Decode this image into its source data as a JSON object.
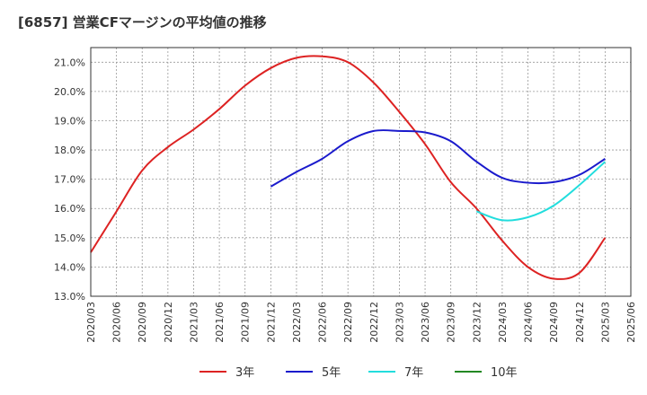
{
  "chart_data": {
    "type": "line",
    "title": "[6857]  営業CFマージンの平均値の推移",
    "xlabel": "",
    "ylabel": "",
    "y_unit": "%",
    "ylim": [
      13.0,
      21.5
    ],
    "yticks": [
      13.0,
      14.0,
      15.0,
      16.0,
      17.0,
      18.0,
      19.0,
      20.0,
      21.0
    ],
    "ytick_labels": [
      "13.0%",
      "14.0%",
      "15.0%",
      "16.0%",
      "17.0%",
      "18.0%",
      "19.0%",
      "20.0%",
      "21.0%"
    ],
    "xticks": [
      "2020/03",
      "2020/06",
      "2020/09",
      "2020/12",
      "2021/03",
      "2021/06",
      "2021/09",
      "2021/12",
      "2022/03",
      "2022/06",
      "2022/09",
      "2022/12",
      "2023/03",
      "2023/06",
      "2023/09",
      "2023/12",
      "2024/03",
      "2024/06",
      "2024/09",
      "2024/12",
      "2025/03",
      "2025/06"
    ],
    "grid": true,
    "legend_position": "bottom",
    "series": [
      {
        "name": "3年",
        "color": "#dd2222",
        "x": [
          "2020/03",
          "2020/06",
          "2020/09",
          "2020/12",
          "2021/03",
          "2021/06",
          "2021/09",
          "2021/12",
          "2022/03",
          "2022/06",
          "2022/09",
          "2022/12",
          "2023/03",
          "2023/06",
          "2023/09",
          "2023/12",
          "2024/03",
          "2024/06",
          "2024/09",
          "2024/12",
          "2025/03"
        ],
        "values": [
          14.5,
          15.9,
          17.3,
          18.1,
          18.7,
          19.4,
          20.2,
          20.8,
          21.15,
          21.2,
          21.0,
          20.3,
          19.3,
          18.2,
          16.9,
          16.0,
          14.9,
          14.0,
          13.6,
          13.8,
          15.0
        ]
      },
      {
        "name": "5年",
        "color": "#1a1acc",
        "x": [
          "2021/12",
          "2022/03",
          "2022/06",
          "2022/09",
          "2022/12",
          "2023/03",
          "2023/06",
          "2023/09",
          "2023/12",
          "2024/03",
          "2024/06",
          "2024/09",
          "2024/12",
          "2025/03"
        ],
        "values": [
          16.75,
          17.25,
          17.7,
          18.3,
          18.65,
          18.65,
          18.6,
          18.3,
          17.6,
          17.05,
          16.88,
          16.9,
          17.15,
          17.7
        ]
      },
      {
        "name": "7年",
        "color": "#22dddd",
        "x": [
          "2023/12",
          "2024/03",
          "2024/06",
          "2024/09",
          "2024/12",
          "2025/03"
        ],
        "values": [
          15.9,
          15.6,
          15.7,
          16.1,
          16.8,
          17.6
        ]
      },
      {
        "name": "10年",
        "color": "#228822",
        "x": [],
        "values": []
      }
    ]
  }
}
